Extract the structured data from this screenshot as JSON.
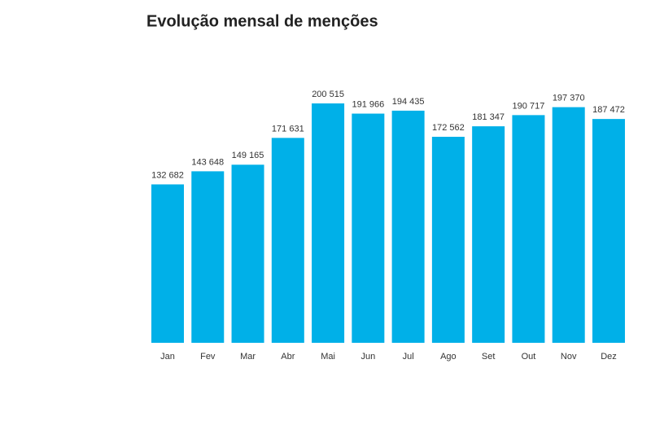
{
  "chart_data": {
    "type": "bar",
    "title": "Evolução mensal de menções",
    "categories": [
      "Jan",
      "Fev",
      "Mar",
      "Abr",
      "Mai",
      "Jun",
      "Jul",
      "Ago",
      "Set",
      "Out",
      "Nov",
      "Dez"
    ],
    "values": [
      132682,
      143648,
      149165,
      171631,
      200515,
      191966,
      194435,
      172562,
      181347,
      190717,
      197370,
      187472
    ],
    "value_labels": [
      "132 682",
      "143 648",
      "149 165",
      "171 631",
      "200 515",
      "191 966",
      "194 435",
      "172 562",
      "181 347",
      "190 717",
      "197 370",
      "187 472"
    ],
    "color": "#00b0e8"
  }
}
